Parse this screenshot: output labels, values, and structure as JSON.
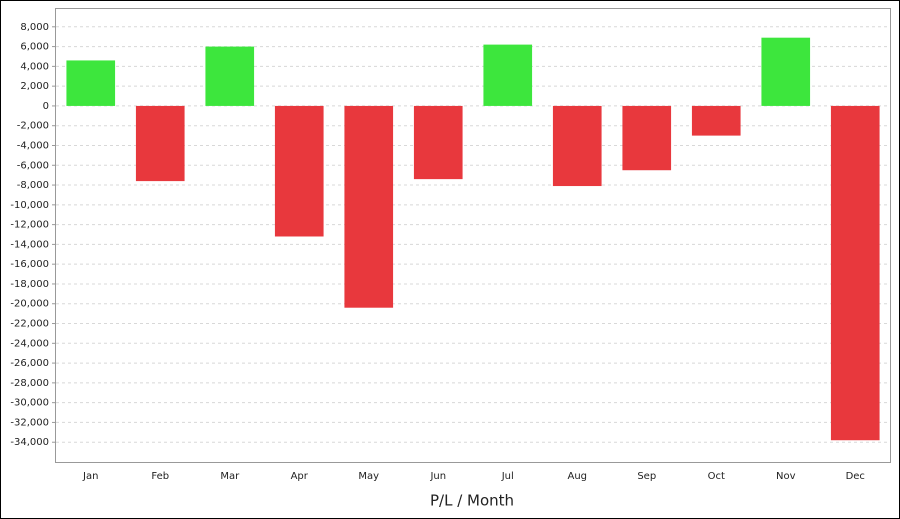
{
  "chart_data": {
    "type": "bar",
    "x_label": "P/L / Month",
    "categories": [
      "Jan",
      "Feb",
      "Mar",
      "Apr",
      "May",
      "Jun",
      "Jul",
      "Aug",
      "Sep",
      "Oct",
      "Nov",
      "Dec"
    ],
    "values": [
      4600,
      -7600,
      6000,
      -13200,
      -20400,
      -7400,
      6200,
      -8100,
      -6500,
      -3000,
      6900,
      -33800
    ],
    "positive_color": "#3de63d",
    "negative_color": "#e8383d",
    "ylim": [
      -36000,
      9800
    ],
    "yticks": [
      {
        "value": 8000,
        "label": "8,000"
      },
      {
        "value": 6000,
        "label": "6,000"
      },
      {
        "value": 4000,
        "label": "4,000"
      },
      {
        "value": 2000,
        "label": "2,000"
      },
      0,
      {
        "value": -2000,
        "label": "-2,000"
      },
      {
        "value": -4000,
        "label": "-4,000"
      },
      {
        "value": -6000,
        "label": "-6,000"
      },
      {
        "value": -8000,
        "label": "-8,000"
      },
      {
        "value": -10000,
        "label": "-10,000"
      },
      {
        "value": -12000,
        "label": "-12,000"
      },
      {
        "value": -14000,
        "label": "-14,000"
      },
      {
        "value": -16000,
        "label": "-16,000"
      },
      {
        "value": -18000,
        "label": "-18,000"
      },
      {
        "value": -20000,
        "label": "-20,000"
      },
      {
        "value": -22000,
        "label": "-22,000"
      },
      {
        "value": -24000,
        "label": "-24,000"
      },
      {
        "value": -26000,
        "label": "-26,000"
      },
      {
        "value": -28000,
        "label": "-28,000"
      },
      {
        "value": -30000,
        "label": "-30,000"
      },
      {
        "value": -32000,
        "label": "-32,000"
      },
      {
        "value": -34000,
        "label": "-34,000"
      }
    ],
    "grid": true
  }
}
